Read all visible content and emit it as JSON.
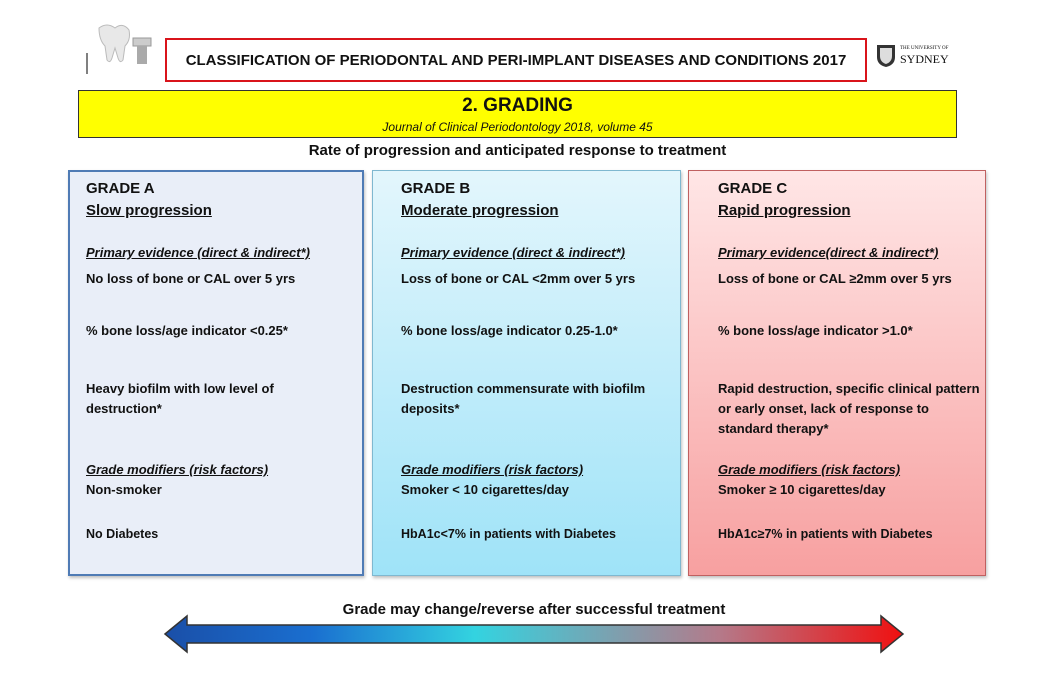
{
  "header": {
    "title": "CLASSIFICATION OF PERIODONTAL AND PERI-IMPLANT DISEASES AND CONDITIONS 2017",
    "logo_small": "THE UNIVERSITY OF",
    "logo_big": "SYDNEY"
  },
  "banner": {
    "title": "2. GRADING",
    "subtitle": "Journal of Clinical Periodontology 2018, volume 45"
  },
  "subtitle": "Rate of progression and anticipated response to treatment",
  "grades": [
    {
      "grade": "GRADE A",
      "name": "Slow progression",
      "evidence_heading": "Primary evidence (direct & indirect*)",
      "evidence": [
        "No loss of bone or CAL over 5 yrs",
        "% bone loss/age indicator <0.25*",
        "Heavy biofilm with low level of destruction*"
      ],
      "modifiers_heading": "Grade modifiers (risk factors)",
      "modifiers": [
        "Non-smoker",
        "No Diabetes"
      ]
    },
    {
      "grade": "GRADE B",
      "name": "Moderate progression",
      "evidence_heading": "Primary evidence (direct & indirect*)",
      "evidence": [
        "Loss of bone or CAL <2mm over 5 yrs",
        "% bone loss/age indicator  0.25-1.0*",
        "Destruction commensurate with biofilm deposits*"
      ],
      "modifiers_heading": "Grade modifiers (risk factors)",
      "modifiers": [
        "Smoker < 10 cigarettes/day",
        "HbA1c<7% in patients with Diabetes"
      ]
    },
    {
      "grade": "GRADE C",
      "name": "Rapid progression",
      "evidence_heading": "Primary evidence(direct & indirect*)",
      "evidence": [
        "Loss of bone or CAL ≥2mm over 5 yrs",
        "% bone loss/age indicator  >1.0*",
        "Rapid destruction, specific clinical pattern or early onset, lack of response to standard therapy*"
      ],
      "modifiers_heading": "Grade modifiers (risk factors)",
      "modifiers": [
        "Smoker ≥ 10 cigarettes/day",
        "HbA1c≥7% in patients with Diabetes"
      ]
    }
  ],
  "footer": "Grade may change/reverse after successful treatment"
}
